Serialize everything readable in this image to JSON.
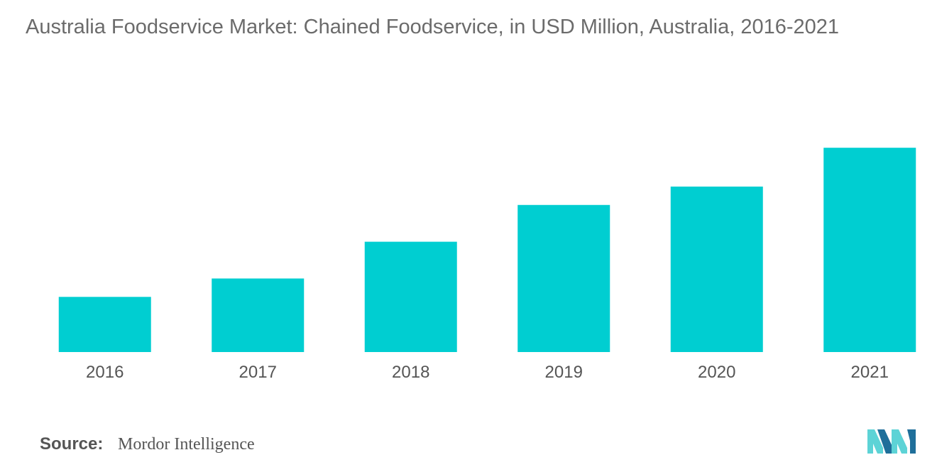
{
  "title": "Australia Foodservice Market: Chained Foodservice, in USD Million, Australia, 2016-2021",
  "source": {
    "label": "Source:",
    "value": "Mordor Intelligence"
  },
  "colors": {
    "bar": "#00CED1",
    "logo_light": "#5DD3D6",
    "logo_dark": "#1F6F9A"
  },
  "logo_icon": "mordor-intelligence-logo-icon",
  "chart_data": {
    "type": "bar",
    "categories": [
      "2016",
      "2017",
      "2018",
      "2019",
      "2020",
      "2021"
    ],
    "values": [
      27,
      36,
      54,
      72,
      81,
      100
    ],
    "xlabel": "",
    "ylabel": "",
    "ylim": [
      0,
      115
    ],
    "grid": false,
    "legend": "none"
  }
}
